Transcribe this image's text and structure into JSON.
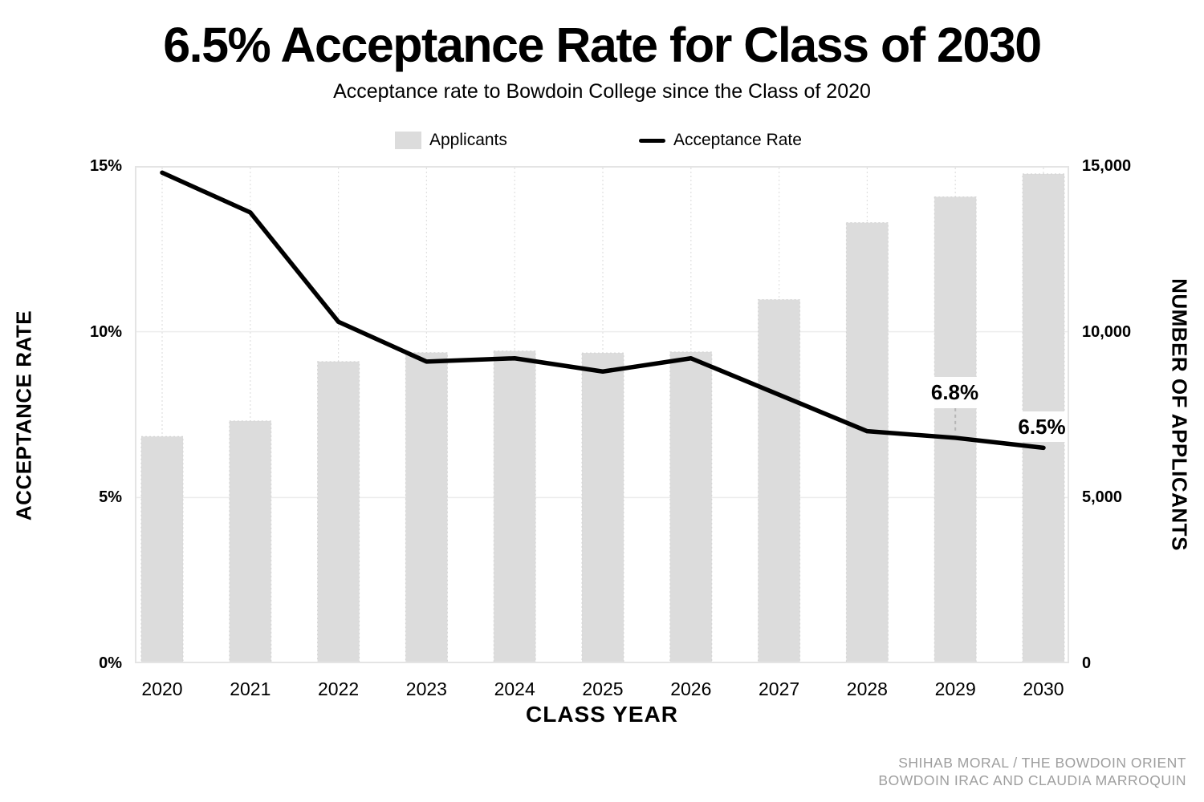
{
  "chart_data": {
    "type": "combo-bar-line",
    "title": "6.5% Acceptance Rate for Class of 2030",
    "subtitle": "Acceptance rate to Bowdoin College since the Class of 2020",
    "x_label": "CLASS YEAR",
    "categories": [
      "2020",
      "2021",
      "2022",
      "2023",
      "2024",
      "2025",
      "2026",
      "2027",
      "2028",
      "2029",
      "2030"
    ],
    "series": [
      {
        "name": "Applicants",
        "type": "bar",
        "axis": "right",
        "values": [
          6840,
          7310,
          9100,
          9370,
          9420,
          9360,
          9390,
          10970,
          13290,
          14070,
          14760
        ]
      },
      {
        "name": "Acceptance Rate",
        "type": "line",
        "axis": "left",
        "values": [
          14.8,
          13.6,
          10.3,
          9.1,
          9.2,
          8.8,
          9.2,
          8.1,
          7.0,
          6.8,
          6.5
        ]
      }
    ],
    "left_axis": {
      "title": "ACCEPTANCE RATE",
      "ticks": [
        "15%",
        "10%",
        "5%",
        "0%"
      ],
      "range": [
        0,
        15
      ],
      "unit": "%"
    },
    "right_axis": {
      "title": "NUMBER OF APPLICANTS",
      "ticks": [
        "15,000",
        "10,000",
        "5,000",
        "0"
      ],
      "range": [
        0,
        15000
      ]
    },
    "annotations": [
      {
        "category": "2029",
        "label": "6.8%"
      },
      {
        "category": "2030",
        "label": "6.5%"
      }
    ],
    "grid": true,
    "legend_position": "top"
  },
  "footer": {
    "credit_line1": "SHIHAB MORAL / THE BOWDOIN ORIENT",
    "credit_line2": "BOWDOIN IRAC AND CLAUDIA MARROQUIN"
  },
  "colors": {
    "bar": "#dcdcdc",
    "bar_edge": "#d2d2d2",
    "line": "#000000",
    "grid": "#ececec",
    "grid_dotted": "#e0e0e0",
    "plot_border": "#e4e4e4",
    "annotation_bg": "#ffffff",
    "connector": "#b5b5b5",
    "credit": "#9e9e9e"
  }
}
